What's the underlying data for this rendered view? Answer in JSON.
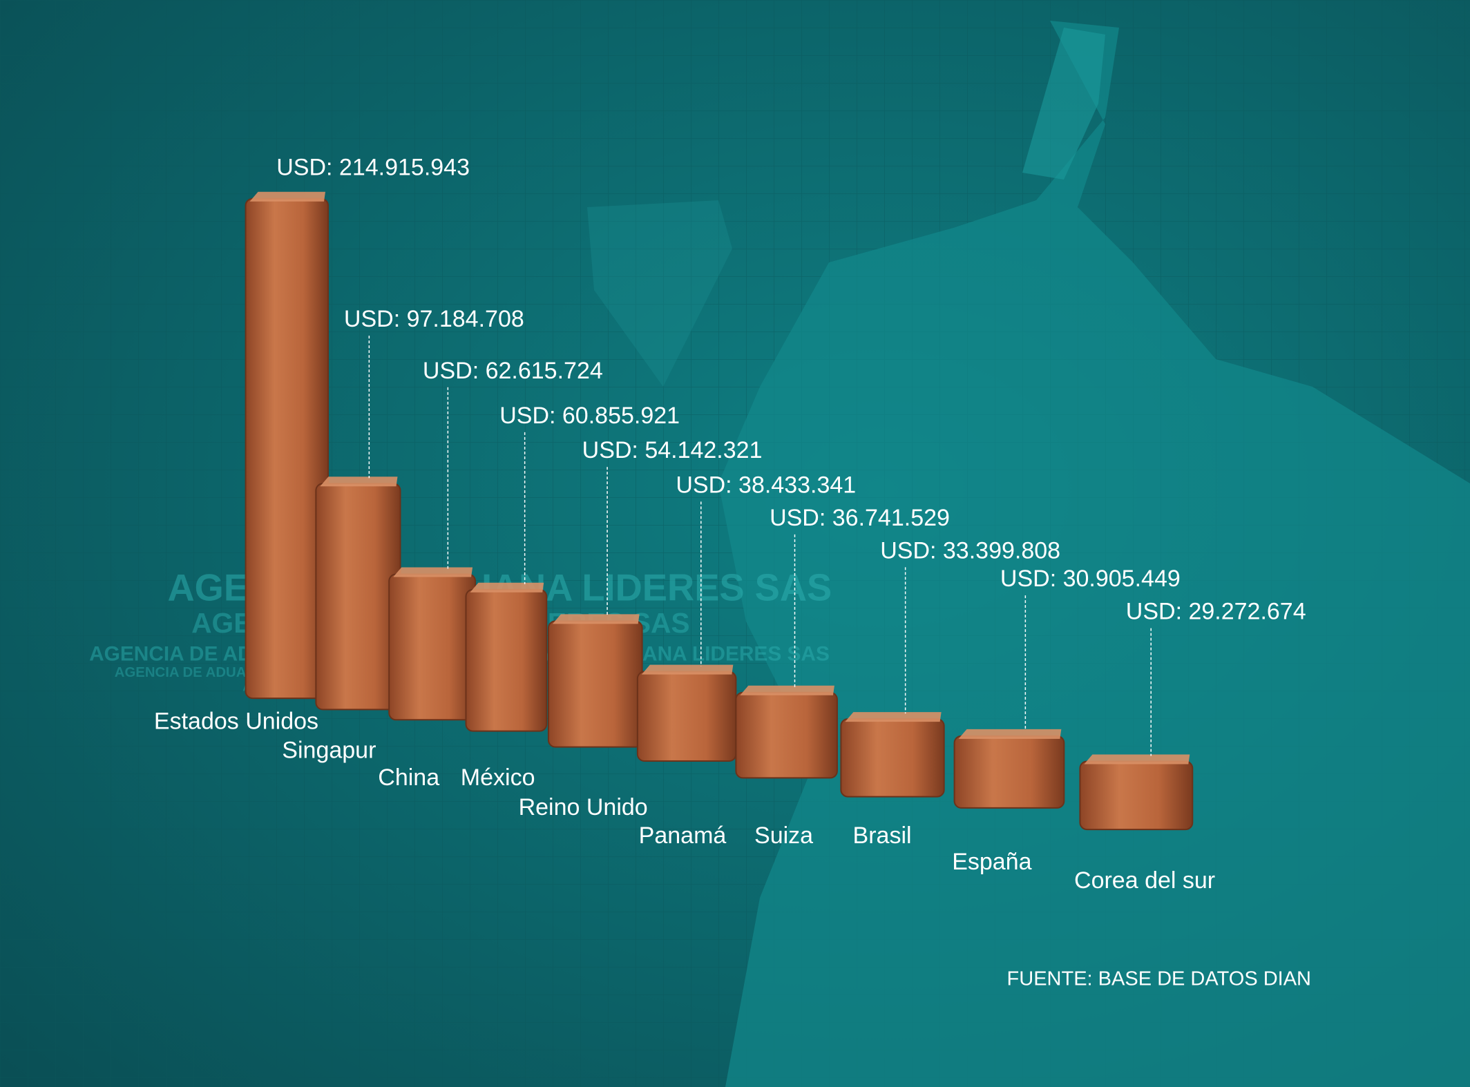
{
  "chart_data": {
    "type": "bar",
    "categories": [
      "Estados Unidos",
      "Singapur",
      "China",
      "México",
      "Reino Unido",
      "Panamá",
      "Suiza",
      "Brasil",
      "España",
      "Corea del sur"
    ],
    "values": [
      214915943,
      97184708,
      62615724,
      60855921,
      54142321,
      38433341,
      36741529,
      33399808,
      30905449,
      29272674
    ],
    "value_labels": [
      "USD: 214.915.943",
      "USD: 97.184.708",
      "USD: 62.615.724",
      "USD: 60.855.921",
      "USD: 54.142.321",
      "USD: 38.433.341",
      "USD: 36.741.529",
      "USD: 33.399.808",
      "USD: 30.905.449",
      "USD: 29.272.674"
    ],
    "color": "#b8653c",
    "watermark": "AGENCIA DE ADUANA LIDERES SAS",
    "source": "FUENTE: BASE DE DATOS DIAN"
  }
}
